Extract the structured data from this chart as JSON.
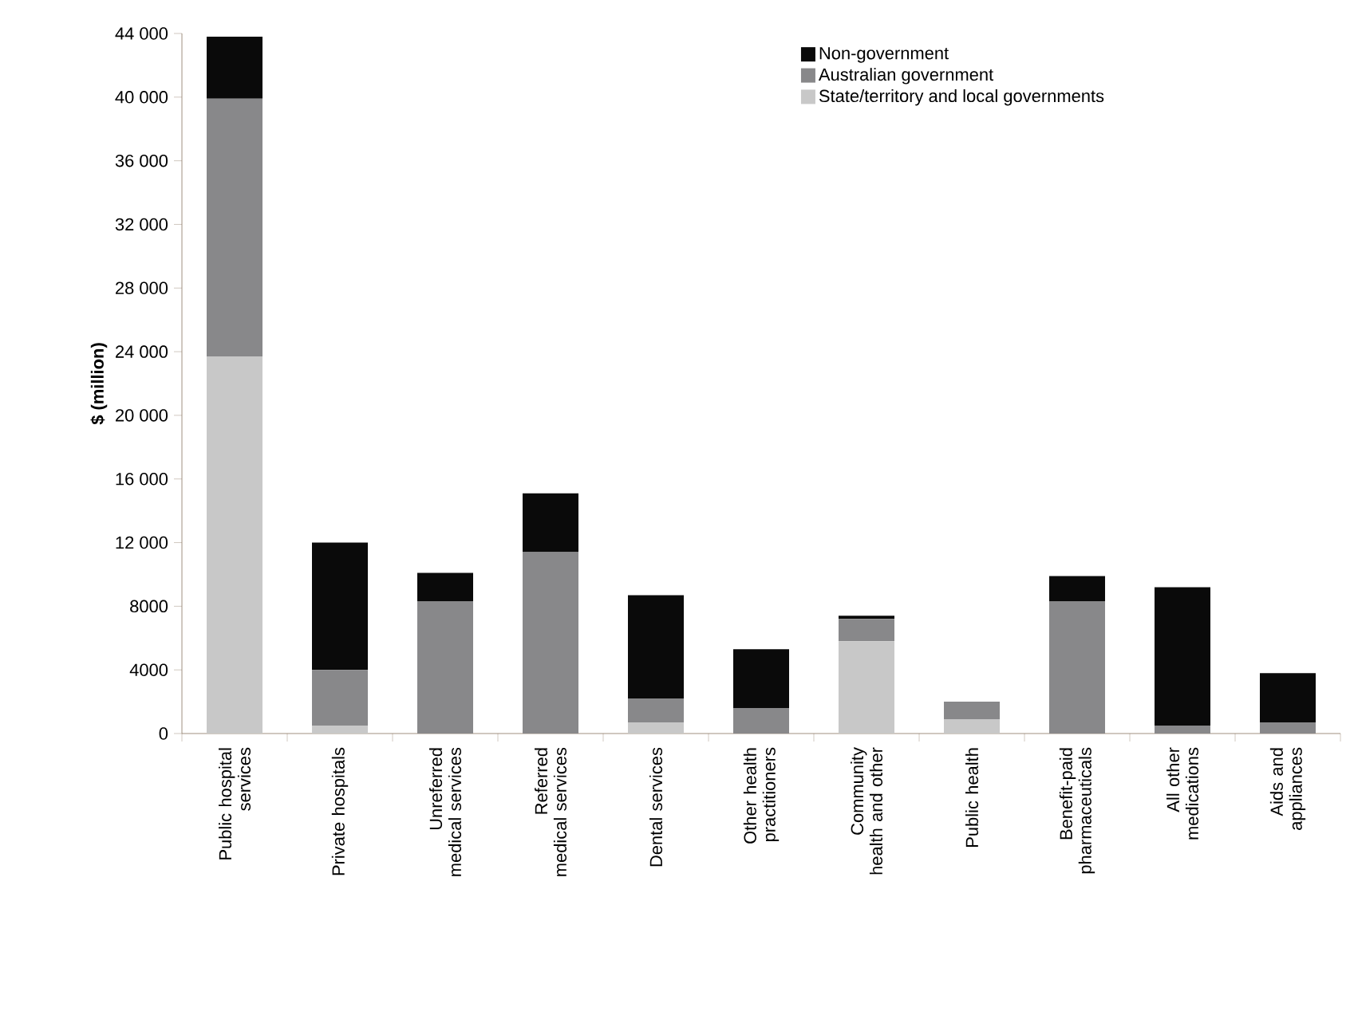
{
  "chart_data": {
    "type": "bar",
    "stacked": true,
    "ylabel": "$ (million)",
    "categories": [
      "Public hospital services",
      "Private hospitals",
      "Unreferred medical services",
      "Referred medical services",
      "Dental services",
      "Other health practitioners",
      "Community health and other",
      "Public health",
      "Benefit-paid pharmaceuticals",
      "All other medications",
      "Aids and appliances"
    ],
    "series": [
      {
        "name": "State/territory and local governments",
        "color": "#c8c8c8",
        "values": [
          23700,
          500,
          0,
          0,
          700,
          0,
          5800,
          900,
          0,
          0,
          0
        ]
      },
      {
        "name": "Australian government",
        "color": "#88888a",
        "values": [
          16200,
          3500,
          8300,
          11400,
          1500,
          1600,
          1400,
          1100,
          8300,
          500,
          700
        ]
      },
      {
        "name": "Non-government",
        "color": "#0a0a0a",
        "values": [
          3900,
          8000,
          1800,
          3700,
          6500,
          3700,
          200,
          0,
          1600,
          8700,
          3100
        ]
      }
    ],
    "ylim": [
      0,
      44000
    ],
    "yticks": [
      0,
      4000,
      8000,
      {
        "value": 12000,
        "label": "12 000"
      },
      {
        "value": 16000,
        "label": "16 000"
      },
      {
        "value": 20000,
        "label": "20 000"
      },
      {
        "value": 24000,
        "label": "24 000"
      },
      {
        "value": 28000,
        "label": "28 000"
      },
      {
        "value": 32000,
        "label": "32 000"
      },
      {
        "value": 36000,
        "label": "36 000"
      },
      {
        "value": 40000,
        "label": "40 000"
      },
      {
        "value": 44000,
        "label": "44 000"
      }
    ],
    "legend": "top right",
    "grid": false
  }
}
